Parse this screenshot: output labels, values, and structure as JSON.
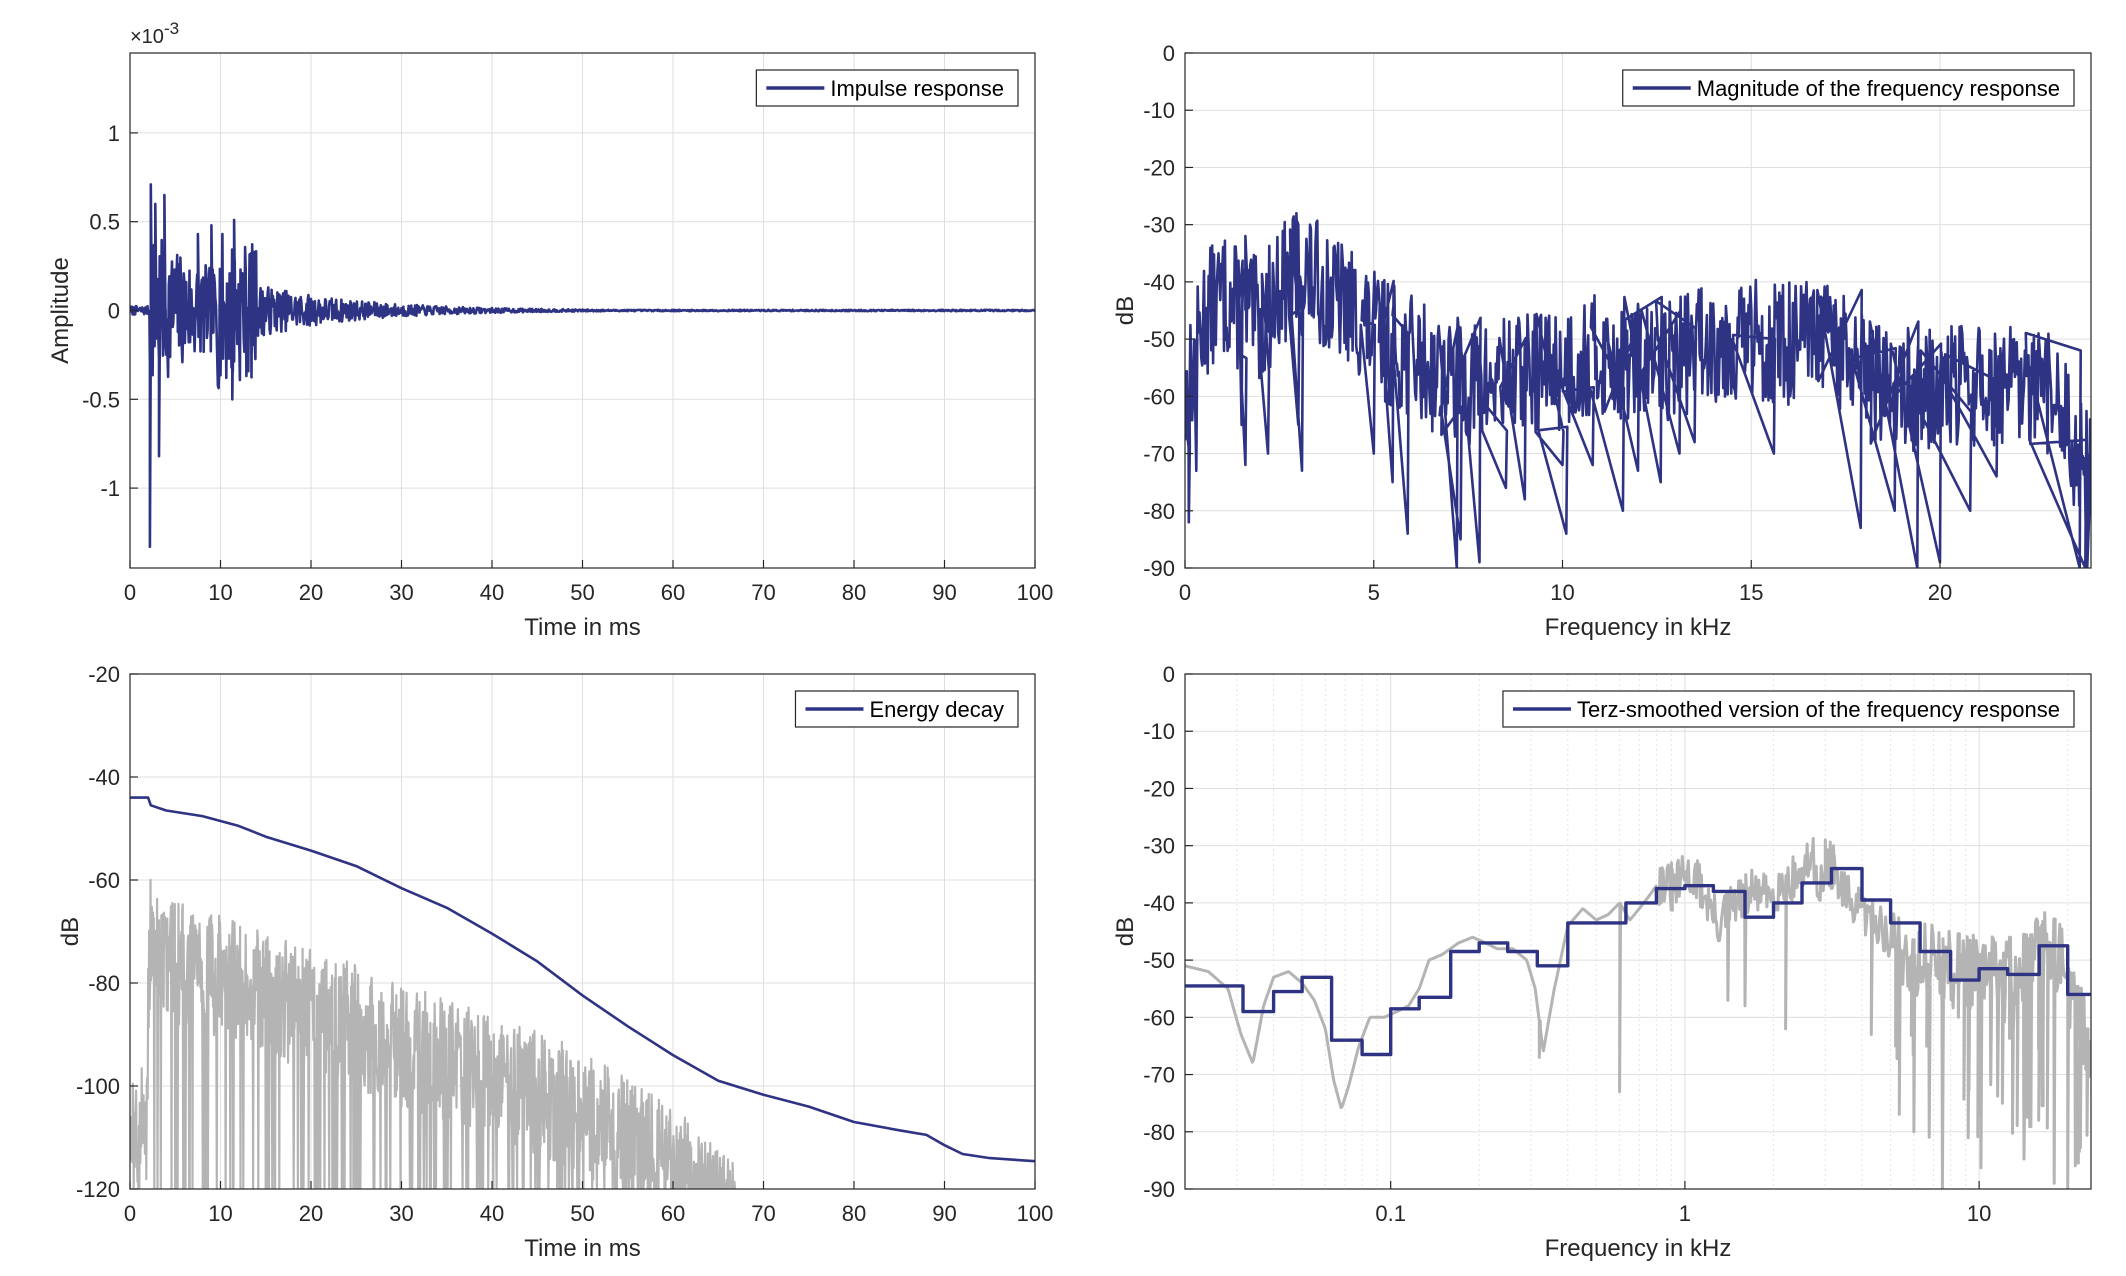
{
  "chart_data": [
    {
      "id": "impulse",
      "type": "line",
      "title": "",
      "xlabel": "Time in ms",
      "ylabel": "Amplitude",
      "exponent_label": "×10",
      "exponent_power": "-3",
      "xlim": [
        0,
        100
      ],
      "ylim": [
        -1.45,
        1.45
      ],
      "xticks": [
        0,
        10,
        20,
        30,
        40,
        50,
        60,
        70,
        80,
        90,
        100
      ],
      "xtick_labels": [
        "0",
        "10",
        "20",
        "30",
        "40",
        "50",
        "60",
        "70",
        "80",
        "90",
        "100"
      ],
      "yticks": [
        -1,
        -0.5,
        0,
        0.5,
        1
      ],
      "ytick_labels": [
        "-1",
        "-0.5",
        "0",
        "0.5",
        "1"
      ],
      "grid": true,
      "legend": {
        "location": "top-right",
        "entries": [
          "Impulse response"
        ]
      },
      "series": [
        {
          "name": "Impulse response",
          "color": "#2e3383",
          "kind": "impulse",
          "onset_ms": 2.2,
          "peak_negative": -1.33,
          "peak_positive": 0.71,
          "second_burst_ms": 11.5,
          "second_burst_peak": 0.51,
          "decay_end_ms": 45
        }
      ]
    },
    {
      "id": "magnitude",
      "type": "line",
      "title": "",
      "xlabel": "Frequency in kHz",
      "ylabel": "dB",
      "xlim": [
        0,
        24
      ],
      "ylim": [
        -90,
        0
      ],
      "xticks": [
        0,
        5,
        10,
        15,
        20
      ],
      "xtick_labels": [
        "0",
        "5",
        "10",
        "15",
        "20"
      ],
      "yticks": [
        0,
        -10,
        -20,
        -30,
        -40,
        -50,
        -60,
        -70,
        -80,
        -90
      ],
      "ytick_labels": [
        "0",
        "-10",
        "-20",
        "-30",
        "-40",
        "-50",
        "-60",
        "-70",
        "-80",
        "-90"
      ],
      "grid": true,
      "legend": {
        "location": "top-right",
        "entries": [
          "Magnitude of the frequency response"
        ]
      },
      "series": [
        {
          "name": "Magnitude of the frequency response",
          "color": "#2e3383",
          "kind": "noisy",
          "envelope_x": [
            0,
            0.5,
            1.0,
            1.5,
            2.0,
            2.5,
            3.0,
            3.5,
            4.0,
            4.5,
            5.0,
            5.5,
            6.0,
            7.0,
            8.0,
            9.0,
            10.0,
            11.0,
            12.0,
            13.0,
            14.0,
            15.0,
            16.0,
            17.0,
            18.0,
            19.0,
            20.0,
            21.0,
            22.0,
            23.0,
            24.0
          ],
          "envelope_y": [
            -62,
            -46,
            -42,
            -45,
            -47,
            -41,
            -38,
            -40,
            -43,
            -45,
            -49,
            -51,
            -53,
            -57,
            -58,
            -56,
            -55,
            -53,
            -54,
            -53,
            -50,
            -50,
            -51,
            -50,
            -57,
            -59,
            -59,
            -58,
            -59,
            -60,
            -75
          ],
          "dips": [
            [
              0.1,
              -82
            ],
            [
              0.3,
              -73
            ],
            [
              1.5,
              -65
            ],
            [
              1.6,
              -72
            ],
            [
              2.2,
              -70
            ],
            [
              3.0,
              -65
            ],
            [
              3.1,
              -73
            ],
            [
              5.0,
              -70
            ],
            [
              5.5,
              -75
            ],
            [
              5.9,
              -84
            ],
            [
              7.2,
              -90
            ],
            [
              7.3,
              -85
            ],
            [
              7.8,
              -89
            ],
            [
              8.5,
              -76
            ],
            [
              9.0,
              -78
            ],
            [
              10.0,
              -72
            ],
            [
              10.1,
              -84
            ],
            [
              10.8,
              -72
            ],
            [
              11.6,
              -80
            ],
            [
              12.0,
              -73
            ],
            [
              12.6,
              -75
            ],
            [
              13.1,
              -70
            ],
            [
              13.5,
              -68
            ],
            [
              15.6,
              -70
            ],
            [
              17.9,
              -83
            ],
            [
              18.8,
              -80
            ],
            [
              19.4,
              -91
            ],
            [
              20.0,
              -89
            ],
            [
              20.8,
              -80
            ],
            [
              21.5,
              -74
            ],
            [
              23.7,
              -90
            ],
            [
              23.85,
              -90
            ]
          ]
        }
      ]
    },
    {
      "id": "decay",
      "type": "line",
      "title": "",
      "xlabel": "Time in ms",
      "ylabel": "dB",
      "xlim": [
        0,
        100
      ],
      "ylim": [
        -120,
        -20
      ],
      "xticks": [
        0,
        10,
        20,
        30,
        40,
        50,
        60,
        70,
        80,
        90,
        100
      ],
      "xtick_labels": [
        "0",
        "10",
        "20",
        "30",
        "40",
        "50",
        "60",
        "70",
        "80",
        "90",
        "100"
      ],
      "yticks": [
        -20,
        -40,
        -60,
        -80,
        -100,
        -120
      ],
      "ytick_labels": [
        "-20",
        "-40",
        "-60",
        "-80",
        "-100",
        "-120"
      ],
      "grid": true,
      "legend": {
        "location": "top-right",
        "entries": [
          "Energy decay"
        ]
      },
      "series": [
        {
          "name": "Energy decay",
          "color": "#2e3383",
          "kind": "curve",
          "x": [
            0,
            2,
            2.3,
            4,
            8,
            12,
            15,
            20,
            25,
            30,
            35,
            40,
            45,
            50,
            55,
            60,
            65,
            70,
            75,
            80,
            85,
            88,
            90,
            92,
            95,
            100
          ],
          "y": [
            -44,
            -44,
            -45.5,
            -46.5,
            -47.6,
            -49.5,
            -51.6,
            -54.3,
            -57.3,
            -61.6,
            -65.4,
            -70.4,
            -75.8,
            -82.4,
            -88.4,
            -94,
            -99,
            -101.7,
            -104,
            -107,
            -108.6,
            -109.5,
            -111.5,
            -113.2,
            -114,
            -114.6
          ]
        },
        {
          "name": "",
          "color": "#b4b4b4",
          "kind": "energy",
          "env_x": [
            0,
            1.8,
            2.2,
            5,
            10,
            20,
            30,
            40,
            50,
            60,
            67
          ],
          "env_y": [
            -100,
            -95,
            -58,
            -64,
            -67,
            -73,
            -80,
            -86,
            -93,
            -104,
            -115
          ]
        }
      ]
    },
    {
      "id": "terz",
      "type": "line",
      "title": "",
      "xlabel": "Frequency in kHz",
      "ylabel": "dB",
      "xscale": "log",
      "xlim": [
        0.02,
        24
      ],
      "ylim": [
        -90,
        0
      ],
      "xticks": [
        0.1,
        1,
        10
      ],
      "xtick_labels": [
        "0.1",
        "1",
        "10"
      ],
      "yticks": [
        0,
        -10,
        -20,
        -30,
        -40,
        -50,
        -60,
        -70,
        -80,
        -90
      ],
      "ytick_labels": [
        "0",
        "-10",
        "-20",
        "-30",
        "-40",
        "-50",
        "-60",
        "-70",
        "-80",
        "-90"
      ],
      "grid": true,
      "legend": {
        "location": "top-right",
        "entries": [
          "Terz-smoothed version of the frequency response"
        ]
      },
      "series": [
        {
          "name": "",
          "color": "#b4b4b4",
          "kind": "curve",
          "x": [
            0.02,
            0.024,
            0.028,
            0.031,
            0.034,
            0.037,
            0.04,
            0.045,
            0.05,
            0.055,
            0.06,
            0.064,
            0.068,
            0.072,
            0.078,
            0.085,
            0.095,
            0.105,
            0.115,
            0.125,
            0.135,
            0.15,
            0.17,
            0.19,
            0.21,
            0.23,
            0.26,
            0.29,
            0.31,
            0.33,
            0.36,
            0.4,
            0.45,
            0.5,
            0.55,
            0.6,
            0.65,
            0.7,
            0.75,
            0.8,
            0.85,
            0.9,
            1.0,
            1.1,
            1.2,
            1.3,
            1.4,
            1.5,
            1.7,
            1.9,
            2.1,
            2.3,
            2.5,
            2.7,
            2.9,
            3.1,
            3.4,
            3.7,
            4.0,
            4.5,
            5,
            6,
            7,
            8,
            9,
            10,
            12,
            14,
            16,
            18,
            20,
            22,
            24
          ],
          "y": [
            -51,
            -52,
            -55,
            -63,
            -68,
            -58,
            -53,
            -52,
            -54,
            -57,
            -62,
            -71,
            -76,
            -72,
            -65,
            -60,
            -60,
            -59,
            -58,
            -55,
            -50,
            -49,
            -47,
            -46,
            -47,
            -48,
            -48,
            -50,
            -55,
            -66,
            -55,
            -44,
            -41,
            -43,
            -42,
            -40,
            -43,
            -41,
            -39,
            -37,
            -36,
            -38,
            -35,
            -36,
            -40,
            -44,
            -41,
            -40,
            -38,
            -39,
            -37,
            -36,
            -35,
            -32,
            -37,
            -33,
            -38,
            -40,
            -42,
            -43,
            -47,
            -50,
            -50,
            -52,
            -51,
            -53,
            -52,
            -52,
            -48,
            -47,
            -55,
            -60,
            -68
          ],
          "spikes": [
            [
              0.32,
              -67
            ],
            [
              0.6,
              -73
            ],
            [
              0.9,
              -33
            ],
            [
              1.4,
              -57
            ],
            [
              1.6,
              -58
            ],
            [
              2.2,
              -62
            ],
            [
              3.0,
              -29
            ],
            [
              3.2,
              -30
            ],
            [
              4.3,
              -63
            ],
            [
              5.2,
              -65
            ],
            [
              6.0,
              -80
            ],
            [
              7.5,
              -90
            ],
            [
              8.5,
              -60
            ],
            [
              12.0,
              -75
            ],
            [
              15.0,
              -78
            ],
            [
              18.0,
              -89
            ],
            [
              20.0,
              -90
            ]
          ]
        },
        {
          "name": "Terz-smoothed version of the frequency response",
          "color": "#2e3383",
          "kind": "step",
          "bands": [
            0.02,
            0.025,
            0.0315,
            0.04,
            0.05,
            0.063,
            0.08,
            0.1,
            0.125,
            0.16,
            0.2,
            0.25,
            0.315,
            0.4,
            0.5,
            0.63,
            0.8,
            1.0,
            1.25,
            1.6,
            2.0,
            2.5,
            3.15,
            4.0,
            5.0,
            6.3,
            8.0,
            10.0,
            12.5,
            16.0,
            20.0,
            24.0
          ],
          "levels": [
            -54.5,
            -54.5,
            -59,
            -55.5,
            -53,
            -64,
            -66.5,
            -58.5,
            -56.5,
            -48.5,
            -47,
            -48.5,
            -51,
            -43.5,
            -43.5,
            -40,
            -37.5,
            -37,
            -38,
            -42.5,
            -40,
            -36.5,
            -34,
            -39.5,
            -43.5,
            -48.5,
            -53.5,
            -51.5,
            -52.5,
            -47.5,
            -56
          ]
        }
      ]
    }
  ]
}
